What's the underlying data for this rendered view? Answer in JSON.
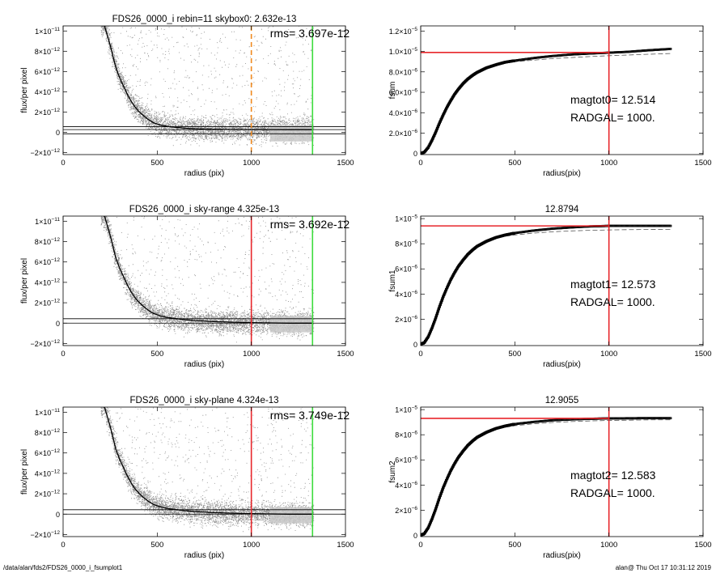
{
  "footer": {
    "left": "/data/alan/fds2/FDS26_0000_i_fsumplot1",
    "right": "alan@  Thu Oct 17 10:31:12 2019"
  },
  "colors": {
    "scatter": "#8c8c8c",
    "sky_band": "#c8c8c8",
    "profile": "#000000",
    "red": "#e8262b",
    "green": "#3ddc3d",
    "orange": "#f08a1f"
  },
  "chart_data": [
    {
      "id": "flux1",
      "type": "scatter",
      "title": "FDS26_0000_i rebin=11    skybox0:  2.632e-13",
      "annotation": "rms= 3.697e-12",
      "xlabel": "radius (pix)",
      "ylabel": "flux/per pixel",
      "xlim": [
        0,
        1500
      ],
      "ylim": [
        -2.2e-12,
        1.05e-11
      ],
      "xticks": [
        {
          "v": 0,
          "t": "0"
        },
        {
          "v": 500,
          "t": "500"
        },
        {
          "v": 1000,
          "t": "1000"
        },
        {
          "v": 1500,
          "t": "1500"
        }
      ],
      "yticks": [
        {
          "v": -2e-12,
          "m": "−2×10",
          "e": "−12"
        },
        {
          "v": 0,
          "m": "0",
          "e": ""
        },
        {
          "v": 2e-12,
          "m": "2×10",
          "e": "−12"
        },
        {
          "v": 4e-12,
          "m": "4×10",
          "e": "−12"
        },
        {
          "v": 6e-12,
          "m": "6×10",
          "e": "−12"
        },
        {
          "v": 8e-12,
          "m": "8×10",
          "e": "−12"
        },
        {
          "v": 1e-11,
          "m": "1×10",
          "e": "−11"
        }
      ],
      "profile_x": [
        220,
        250,
        280,
        300,
        320,
        340,
        360,
        380,
        400,
        420,
        450,
        480,
        520,
        560,
        600,
        650,
        700,
        800,
        900,
        1000,
        1100,
        1200,
        1330
      ],
      "profile_y": [
        1.05e-11,
        8.6e-12,
        6.4e-12,
        5.4e-12,
        4.6e-12,
        3.8e-12,
        3.1e-12,
        2.55e-12,
        2.1e-12,
        1.75e-12,
        1.3e-12,
        9.5e-13,
        7e-13,
        5.6e-13,
        4.8e-13,
        4e-13,
        3.5e-13,
        3e-13,
        2.8e-13,
        2.7e-13,
        2.65e-13,
        2.6e-13,
        2.6e-13
      ],
      "hlines": [
        2.632e-13,
        -1.5e-13,
        5.5e-13
      ],
      "vlines": [
        {
          "x": 1000,
          "color": "orange",
          "dashed": true
        },
        {
          "x": 1325,
          "color": "green"
        }
      ],
      "band_x": [
        1100,
        1330
      ]
    },
    {
      "id": "fsum0",
      "type": "line",
      "title": "",
      "xlabel": "radius(pix)",
      "ylabel": "fsum",
      "text_lines": [
        "magtot0=  12.514",
        "RADGAL=   1000."
      ],
      "xlim": [
        0,
        1500
      ],
      "ylim": [
        -1e-07,
        1.25e-05
      ],
      "xticks": [
        {
          "v": 0,
          "t": "0"
        },
        {
          "v": 500,
          "t": "500"
        },
        {
          "v": 1000,
          "t": "1000"
        },
        {
          "v": 1500,
          "t": "1500"
        }
      ],
      "yticks": [
        {
          "v": 0,
          "m": "0",
          "e": ""
        },
        {
          "v": 2e-06,
          "m": "2.0×10",
          "e": "−6"
        },
        {
          "v": 4e-06,
          "m": "4.0×10",
          "e": "−6"
        },
        {
          "v": 6e-06,
          "m": "6.0×10",
          "e": "−6"
        },
        {
          "v": 8e-06,
          "m": "8.0×10",
          "e": "−6"
        },
        {
          "v": 1e-05,
          "m": "1.0×10",
          "e": "−5"
        },
        {
          "v": 1.2e-05,
          "m": "1.2×10",
          "e": "−5"
        }
      ],
      "curve_x": [
        0,
        20,
        40,
        60,
        80,
        100,
        120,
        140,
        160,
        180,
        200,
        225,
        250,
        275,
        300,
        350,
        400,
        450,
        500,
        600,
        700,
        800,
        900,
        1000,
        1100,
        1200,
        1330
      ],
      "curve_y": [
        0,
        1.5e-07,
        6e-07,
        1.3e-06,
        2.1e-06,
        3e-06,
        3.8e-06,
        4.55e-06,
        5.2e-06,
        5.8e-06,
        6.3e-06,
        6.85e-06,
        7.3e-06,
        7.65e-06,
        7.95e-06,
        8.4e-06,
        8.7e-06,
        8.95e-06,
        9.1e-06,
        9.35e-06,
        9.55e-06,
        9.7e-06,
        9.8e-06,
        9.88e-06,
        9.96e-06,
        1.01e-05,
        1.025e-05
      ],
      "dash_y": [
        0,
        1.5e-07,
        6e-07,
        1.3e-06,
        2.1e-06,
        3e-06,
        3.8e-06,
        4.55e-06,
        5.2e-06,
        5.8e-06,
        6.3e-06,
        6.85e-06,
        7.3e-06,
        7.65e-06,
        7.95e-06,
        8.4e-06,
        8.65e-06,
        8.85e-06,
        9e-06,
        9.15e-06,
        9.3e-06,
        9.4e-06,
        9.5e-06,
        9.58e-06,
        9.65e-06,
        9.72e-06,
        9.8e-06
      ],
      "total": 9.9e-06,
      "radgal": 1000
    },
    {
      "id": "flux2",
      "type": "scatter",
      "title": "FDS26_0000_i sky-range  4.325e-13",
      "annotation": "rms= 3.692e-12",
      "xlabel": "radius (pix)",
      "ylabel": "flux/per pixel",
      "xlim": [
        0,
        1500
      ],
      "ylim": [
        -2.2e-12,
        1.05e-11
      ],
      "xticks": [
        {
          "v": 0,
          "t": "0"
        },
        {
          "v": 500,
          "t": "500"
        },
        {
          "v": 1000,
          "t": "1000"
        },
        {
          "v": 1500,
          "t": "1500"
        }
      ],
      "yticks": [
        {
          "v": -2e-12,
          "m": "−2×10",
          "e": "−12"
        },
        {
          "v": 0,
          "m": "0",
          "e": ""
        },
        {
          "v": 2e-12,
          "m": "2×10",
          "e": "−12"
        },
        {
          "v": 4e-12,
          "m": "4×10",
          "e": "−12"
        },
        {
          "v": 6e-12,
          "m": "6×10",
          "e": "−12"
        },
        {
          "v": 8e-12,
          "m": "8×10",
          "e": "−12"
        },
        {
          "v": 1e-11,
          "m": "1×10",
          "e": "−11"
        }
      ],
      "profile_x": [
        220,
        250,
        280,
        300,
        320,
        340,
        360,
        380,
        400,
        420,
        450,
        480,
        520,
        560,
        600,
        650,
        700,
        800,
        900,
        1000,
        1100,
        1200,
        1330
      ],
      "profile_y": [
        1.05e-11,
        8.6e-12,
        6.4e-12,
        5.4e-12,
        4.6e-12,
        3.8e-12,
        3.1e-12,
        2.55e-12,
        2.1e-12,
        1.75e-12,
        1.3e-12,
        9.5e-13,
        7e-13,
        5.4e-13,
        4.4e-13,
        3.3e-13,
        2.5e-13,
        1.5e-13,
        9e-14,
        5e-14,
        2e-14,
        0,
        0
      ],
      "hlines": [
        4.325e-13,
        0
      ],
      "vlines": [
        {
          "x": 1000,
          "color": "red"
        },
        {
          "x": 1325,
          "color": "green"
        }
      ],
      "band_x": [
        1100,
        1330
      ]
    },
    {
      "id": "fsum1",
      "type": "line",
      "title": "12.8794",
      "xlabel": "radius(pix)",
      "ylabel": "fsum1",
      "text_lines": [
        "magtot1=  12.573",
        "RADGAL=   1000."
      ],
      "xlim": [
        0,
        1500
      ],
      "ylim": [
        -1e-07,
        1.02e-05
      ],
      "xticks": [
        {
          "v": 0,
          "t": "0"
        },
        {
          "v": 500,
          "t": "500"
        },
        {
          "v": 1000,
          "t": "1000"
        },
        {
          "v": 1500,
          "t": "1500"
        }
      ],
      "yticks": [
        {
          "v": 0,
          "m": "0",
          "e": ""
        },
        {
          "v": 2e-06,
          "m": "2×10",
          "e": "−6"
        },
        {
          "v": 4e-06,
          "m": "4×10",
          "e": "−6"
        },
        {
          "v": 6e-06,
          "m": "6×10",
          "e": "−6"
        },
        {
          "v": 8e-06,
          "m": "8×10",
          "e": "−6"
        },
        {
          "v": 1e-05,
          "m": "1×10",
          "e": "−5"
        }
      ],
      "curve_x": [
        0,
        20,
        40,
        60,
        80,
        100,
        120,
        140,
        160,
        180,
        200,
        225,
        250,
        275,
        300,
        350,
        400,
        450,
        500,
        600,
        700,
        800,
        900,
        1000,
        1100,
        1200,
        1330
      ],
      "curve_y": [
        0,
        1.5e-07,
        6e-07,
        1.3e-06,
        2.1e-06,
        3e-06,
        3.8e-06,
        4.5e-06,
        5.15e-06,
        5.7e-06,
        6.2e-06,
        6.7e-06,
        7.15e-06,
        7.5e-06,
        7.8e-06,
        8.2e-06,
        8.5e-06,
        8.7e-06,
        8.85e-06,
        9.05e-06,
        9.2e-06,
        9.3e-06,
        9.38e-06,
        9.42e-06,
        9.42e-06,
        9.42e-06,
        9.42e-06
      ],
      "dash_y": [
        0,
        1.5e-07,
        6e-07,
        1.3e-06,
        2.1e-06,
        3e-06,
        3.8e-06,
        4.5e-06,
        5.15e-06,
        5.7e-06,
        6.2e-06,
        6.7e-06,
        7.15e-06,
        7.5e-06,
        7.8e-06,
        8.2e-06,
        8.45e-06,
        8.6e-06,
        8.7e-06,
        8.85e-06,
        8.95e-06,
        9.02e-06,
        9.07e-06,
        9.1e-06,
        9.12e-06,
        9.13e-06,
        9.14e-06
      ],
      "total": 9.42e-06,
      "radgal": 1000
    },
    {
      "id": "flux3",
      "type": "scatter",
      "title": "FDS26_0000_i sky-plane  4.324e-13",
      "annotation": "rms= 3.749e-12",
      "xlabel": "radius (pix)",
      "ylabel": "flux/per pixel",
      "xlim": [
        0,
        1500
      ],
      "ylim": [
        -2.2e-12,
        1.05e-11
      ],
      "xticks": [
        {
          "v": 0,
          "t": "0"
        },
        {
          "v": 500,
          "t": "500"
        },
        {
          "v": 1000,
          "t": "1000"
        },
        {
          "v": 1500,
          "t": "1500"
        }
      ],
      "yticks": [
        {
          "v": -2e-12,
          "m": "−2×10",
          "e": "−12"
        },
        {
          "v": 0,
          "m": "0",
          "e": ""
        },
        {
          "v": 2e-12,
          "m": "2×10",
          "e": "−12"
        },
        {
          "v": 4e-12,
          "m": "4×10",
          "e": "−12"
        },
        {
          "v": 6e-12,
          "m": "6×10",
          "e": "−12"
        },
        {
          "v": 8e-12,
          "m": "8×10",
          "e": "−12"
        },
        {
          "v": 1e-11,
          "m": "1×10",
          "e": "−11"
        }
      ],
      "profile_x": [
        220,
        250,
        280,
        300,
        320,
        340,
        360,
        380,
        400,
        420,
        450,
        480,
        520,
        560,
        600,
        650,
        700,
        800,
        900,
        1000,
        1100,
        1200,
        1330
      ],
      "profile_y": [
        1.05e-11,
        8.6e-12,
        6.4e-12,
        5.4e-12,
        4.6e-12,
        3.8e-12,
        3.1e-12,
        2.55e-12,
        2.1e-12,
        1.75e-12,
        1.3e-12,
        9.5e-13,
        7e-13,
        5.4e-13,
        4.4e-13,
        3.3e-13,
        2.5e-13,
        1.5e-13,
        9e-14,
        5e-14,
        2e-14,
        0,
        0
      ],
      "hlines": [
        4.324e-13,
        0
      ],
      "vlines": [
        {
          "x": 1000,
          "color": "red"
        },
        {
          "x": 1325,
          "color": "green"
        }
      ],
      "band_x": [
        1100,
        1330
      ]
    },
    {
      "id": "fsum2",
      "type": "line",
      "title": "12.9055",
      "xlabel": "radius(pix)",
      "ylabel": "fsum2",
      "text_lines": [
        "magtot2=  12.583",
        "RADGAL=   1000."
      ],
      "xlim": [
        0,
        1500
      ],
      "ylim": [
        -1e-07,
        1.02e-05
      ],
      "xticks": [
        {
          "v": 0,
          "t": "0"
        },
        {
          "v": 500,
          "t": "500"
        },
        {
          "v": 1000,
          "t": "1000"
        },
        {
          "v": 1500,
          "t": "1500"
        }
      ],
      "yticks": [
        {
          "v": 0,
          "m": "0",
          "e": ""
        },
        {
          "v": 2e-06,
          "m": "2×10",
          "e": "−6"
        },
        {
          "v": 4e-06,
          "m": "4×10",
          "e": "−6"
        },
        {
          "v": 6e-06,
          "m": "6×10",
          "e": "−6"
        },
        {
          "v": 8e-06,
          "m": "8×10",
          "e": "−6"
        },
        {
          "v": 1e-05,
          "m": "1×10",
          "e": "−5"
        }
      ],
      "curve_x": [
        0,
        20,
        40,
        60,
        80,
        100,
        120,
        140,
        160,
        180,
        200,
        225,
        250,
        275,
        300,
        350,
        400,
        450,
        500,
        600,
        700,
        800,
        900,
        1000,
        1100,
        1200,
        1330
      ],
      "curve_y": [
        0,
        1.5e-07,
        6e-07,
        1.3e-06,
        2.1e-06,
        3e-06,
        3.8e-06,
        4.5e-06,
        5.15e-06,
        5.7e-06,
        6.2e-06,
        6.7e-06,
        7.15e-06,
        7.5e-06,
        7.8e-06,
        8.2e-06,
        8.5e-06,
        8.7e-06,
        8.85e-06,
        9.02e-06,
        9.15e-06,
        9.22e-06,
        9.27e-06,
        9.3e-06,
        9.31e-06,
        9.32e-06,
        9.32e-06
      ],
      "dash_y": [
        0,
        1.5e-07,
        6e-07,
        1.3e-06,
        2.1e-06,
        3e-06,
        3.8e-06,
        4.5e-06,
        5.15e-06,
        5.7e-06,
        6.2e-06,
        6.7e-06,
        7.15e-06,
        7.5e-06,
        7.8e-06,
        8.2e-06,
        8.45e-06,
        8.6e-06,
        8.72e-06,
        8.87e-06,
        8.98e-06,
        9.05e-06,
        9.1e-06,
        9.14e-06,
        9.16e-06,
        9.18e-06,
        9.19e-06
      ],
      "total": 9.3e-06,
      "radgal": 1000
    }
  ]
}
